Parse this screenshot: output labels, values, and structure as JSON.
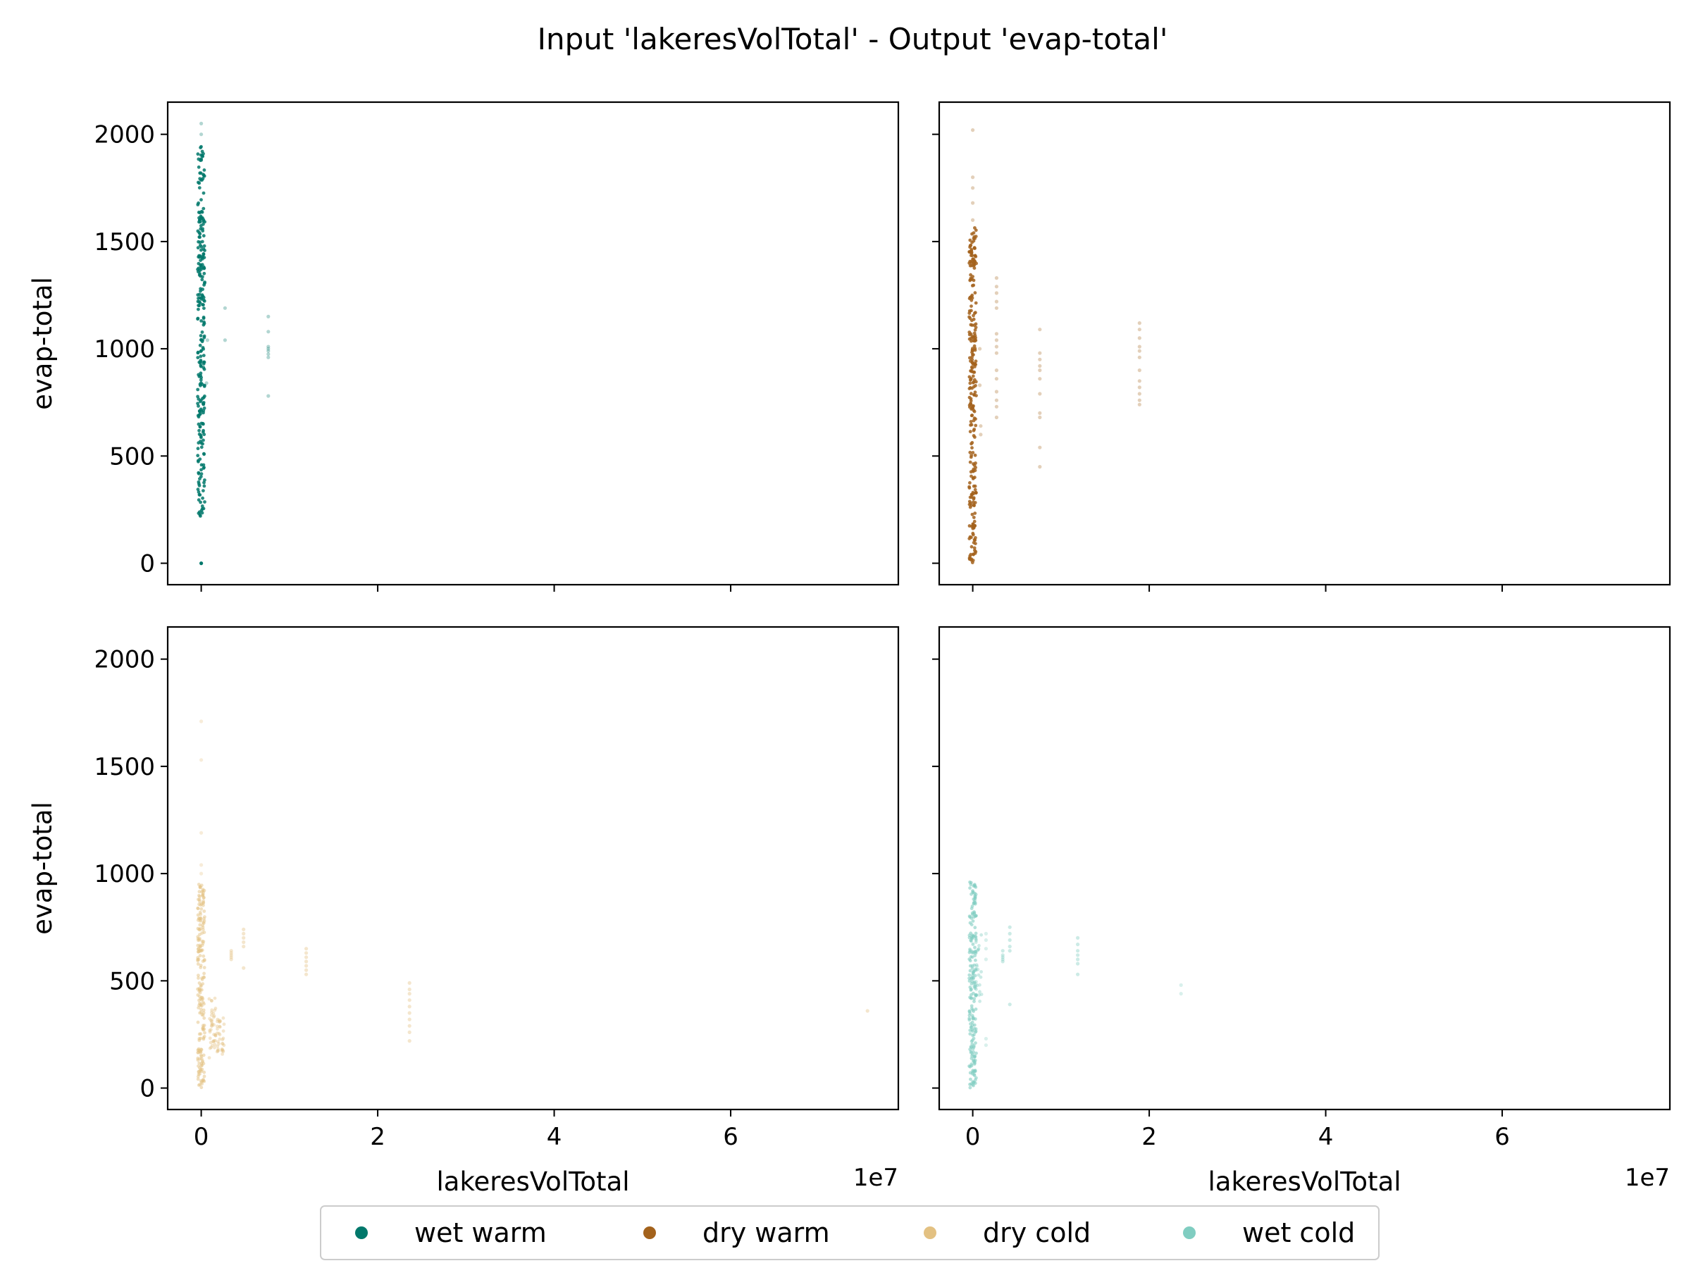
{
  "figure": {
    "title": "Input 'lakeresVolTotal' - Output 'evap-total'"
  },
  "legend": {
    "placement": "bottom-center",
    "entries": [
      {
        "label": "wet warm",
        "color": "#01786b"
      },
      {
        "label": "dry warm",
        "color": "#a3621c"
      },
      {
        "label": "dry cold",
        "color": "#e3c182"
      },
      {
        "label": "wet cold",
        "color": "#80cdc1"
      }
    ]
  },
  "chart_data": [
    {
      "type": "scatter",
      "series": [
        {
          "name": "wet warm",
          "color": "#01786b"
        }
      ],
      "xlim": [
        -3800000,
        79000000
      ],
      "ylim": [
        -100,
        2150
      ],
      "xticks": [
        0,
        20000000,
        40000000,
        60000000
      ],
      "xtick_labels": [],
      "yticks": [
        0,
        500,
        1000,
        1500,
        2000
      ],
      "ytick_labels": [
        "0",
        "500",
        "1000",
        "1500",
        "2000"
      ],
      "xlabel": "",
      "ylabel": "evap-total",
      "offset_text": "",
      "grid": false,
      "bands": [
        {
          "x": 0,
          "y": [
            210,
            1950
          ],
          "n": 260,
          "opacity": 0.85
        }
      ],
      "points": [
        [
          0,
          0,
          1
        ],
        [
          0,
          2050,
          0.3
        ],
        [
          0,
          2000,
          0.3
        ],
        [
          600000,
          840,
          0.3
        ],
        [
          700000,
          1040,
          0.3
        ],
        [
          2700000,
          1190,
          0.3
        ],
        [
          2700000,
          1040,
          0.3
        ],
        [
          7600000,
          1150,
          0.3
        ],
        [
          7600000,
          1080,
          0.3
        ],
        [
          7600000,
          1010,
          0.3
        ],
        [
          7600000,
          1000,
          0.3
        ],
        [
          7600000,
          990,
          0.3
        ],
        [
          7600000,
          975,
          0.3
        ],
        [
          7600000,
          960,
          0.3
        ],
        [
          7600000,
          780,
          0.3
        ]
      ]
    },
    {
      "type": "scatter",
      "series": [
        {
          "name": "dry warm",
          "color": "#a3621c"
        }
      ],
      "xlim": [
        -3800000,
        79000000
      ],
      "ylim": [
        -100,
        2150
      ],
      "xticks": [
        0,
        20000000,
        40000000,
        60000000
      ],
      "xtick_labels": [],
      "yticks": [
        0,
        500,
        1000,
        1500,
        2000
      ],
      "ytick_labels": [],
      "xlabel": "",
      "ylabel": "",
      "offset_text": "",
      "grid": false,
      "bands": [
        {
          "x": 0,
          "y": [
            0,
            1570
          ],
          "n": 260,
          "opacity": 0.85
        }
      ],
      "points": [
        [
          0,
          2020,
          0.3
        ],
        [
          0,
          1800,
          0.3
        ],
        [
          0,
          1750,
          0.3
        ],
        [
          0,
          1680,
          0.3
        ],
        [
          0,
          1600,
          0.3
        ],
        [
          800000,
          1000,
          0.3
        ],
        [
          800000,
          830,
          0.3
        ],
        [
          900000,
          640,
          0.3
        ],
        [
          900000,
          600,
          0.3
        ],
        [
          2700000,
          1330,
          0.3
        ],
        [
          2700000,
          1290,
          0.3
        ],
        [
          2700000,
          1260,
          0.3
        ],
        [
          2700000,
          1220,
          0.3
        ],
        [
          2700000,
          1190,
          0.3
        ],
        [
          2700000,
          1070,
          0.3
        ],
        [
          2700000,
          1040,
          0.3
        ],
        [
          2700000,
          1010,
          0.3
        ],
        [
          2700000,
          980,
          0.3
        ],
        [
          2700000,
          900,
          0.3
        ],
        [
          2700000,
          860,
          0.3
        ],
        [
          2700000,
          800,
          0.3
        ],
        [
          2700000,
          760,
          0.3
        ],
        [
          2700000,
          730,
          0.3
        ],
        [
          2700000,
          680,
          0.3
        ],
        [
          7600000,
          1090,
          0.3
        ],
        [
          7600000,
          980,
          0.3
        ],
        [
          7600000,
          950,
          0.3
        ],
        [
          7600000,
          920,
          0.3
        ],
        [
          7600000,
          900,
          0.3
        ],
        [
          7600000,
          860,
          0.3
        ],
        [
          7600000,
          790,
          0.3
        ],
        [
          7600000,
          700,
          0.3
        ],
        [
          7600000,
          680,
          0.3
        ],
        [
          7600000,
          540,
          0.3
        ],
        [
          7600000,
          450,
          0.3
        ],
        [
          18900000,
          1120,
          0.3
        ],
        [
          18900000,
          1090,
          0.3
        ],
        [
          18900000,
          1050,
          0.3
        ],
        [
          18900000,
          1010,
          0.3
        ],
        [
          18900000,
          990,
          0.3
        ],
        [
          18900000,
          960,
          0.3
        ],
        [
          18900000,
          900,
          0.3
        ],
        [
          18900000,
          850,
          0.3
        ],
        [
          18900000,
          820,
          0.3
        ],
        [
          18900000,
          790,
          0.3
        ],
        [
          18900000,
          760,
          0.3
        ],
        [
          18900000,
          740,
          0.3
        ]
      ]
    },
    {
      "type": "scatter",
      "series": [
        {
          "name": "dry cold",
          "color": "#e3c182"
        }
      ],
      "xlim": [
        -3800000,
        79000000
      ],
      "ylim": [
        -100,
        2150
      ],
      "xticks": [
        0,
        20000000,
        40000000,
        60000000
      ],
      "xtick_labels": [
        "0",
        "2",
        "4",
        "6"
      ],
      "yticks": [
        0,
        500,
        1000,
        1500,
        2000
      ],
      "ytick_labels": [
        "0",
        "500",
        "1000",
        "1500",
        "2000"
      ],
      "xlabel": "lakeresVolTotal",
      "ylabel": "evap-total",
      "offset_text": "1e7",
      "grid": false,
      "bands": [
        {
          "x": 0,
          "y": [
            0,
            950
          ],
          "n": 200,
          "opacity": 0.5
        },
        {
          "x": 1300000,
          "y": [
            140,
            420
          ],
          "n": 40,
          "opacity": 0.4
        },
        {
          "x": 2200000,
          "y": [
            150,
            330
          ],
          "n": 35,
          "opacity": 0.4
        }
      ],
      "points": [
        [
          0,
          1710,
          0.3
        ],
        [
          0,
          1530,
          0.3
        ],
        [
          0,
          1190,
          0.3
        ],
        [
          0,
          1040,
          0.3
        ],
        [
          0,
          1000,
          0.3
        ],
        [
          3400000,
          640,
          0.4
        ],
        [
          3400000,
          630,
          0.4
        ],
        [
          3400000,
          620,
          0.4
        ],
        [
          3400000,
          610,
          0.4
        ],
        [
          3400000,
          600,
          0.4
        ],
        [
          4800000,
          740,
          0.4
        ],
        [
          4800000,
          720,
          0.4
        ],
        [
          4800000,
          700,
          0.4
        ],
        [
          4800000,
          680,
          0.4
        ],
        [
          4800000,
          660,
          0.4
        ],
        [
          4800000,
          560,
          0.4
        ],
        [
          11900000,
          650,
          0.4
        ],
        [
          11900000,
          630,
          0.4
        ],
        [
          11900000,
          610,
          0.4
        ],
        [
          11900000,
          590,
          0.4
        ],
        [
          11900000,
          570,
          0.4
        ],
        [
          11900000,
          550,
          0.4
        ],
        [
          11900000,
          530,
          0.4
        ],
        [
          23600000,
          490,
          0.4
        ],
        [
          23600000,
          460,
          0.4
        ],
        [
          23600000,
          440,
          0.4
        ],
        [
          23600000,
          410,
          0.4
        ],
        [
          23600000,
          380,
          0.4
        ],
        [
          23600000,
          350,
          0.4
        ],
        [
          23600000,
          320,
          0.4
        ],
        [
          23600000,
          290,
          0.4
        ],
        [
          23600000,
          260,
          0.4
        ],
        [
          23600000,
          220,
          0.4
        ],
        [
          75500000,
          360,
          0.4
        ]
      ]
    },
    {
      "type": "scatter",
      "series": [
        {
          "name": "wet cold",
          "color": "#80cdc1"
        }
      ],
      "xlim": [
        -3800000,
        79000000
      ],
      "ylim": [
        -100,
        2150
      ],
      "xticks": [
        0,
        20000000,
        40000000,
        60000000
      ],
      "xtick_labels": [
        "0",
        "2",
        "4",
        "6"
      ],
      "yticks": [
        0,
        500,
        1000,
        1500,
        2000
      ],
      "ytick_labels": [],
      "xlabel": "lakeresVolTotal",
      "ylabel": "",
      "offset_text": "1e7",
      "grid": false,
      "bands": [
        {
          "x": 0,
          "y": [
            0,
            970
          ],
          "n": 200,
          "opacity": 0.6
        },
        {
          "x": 700000,
          "y": [
            400,
            720
          ],
          "n": 25,
          "opacity": 0.4
        }
      ],
      "points": [
        [
          1500000,
          230,
          0.3
        ],
        [
          1500000,
          200,
          0.3
        ],
        [
          1500000,
          720,
          0.3
        ],
        [
          1500000,
          690,
          0.3
        ],
        [
          1500000,
          650,
          0.3
        ],
        [
          1500000,
          600,
          0.3
        ],
        [
          3400000,
          640,
          0.4
        ],
        [
          3400000,
          620,
          0.4
        ],
        [
          3400000,
          610,
          0.4
        ],
        [
          3400000,
          600,
          0.4
        ],
        [
          3400000,
          590,
          0.4
        ],
        [
          4200000,
          750,
          0.4
        ],
        [
          4200000,
          720,
          0.4
        ],
        [
          4200000,
          690,
          0.4
        ],
        [
          4200000,
          660,
          0.4
        ],
        [
          4200000,
          640,
          0.4
        ],
        [
          4200000,
          390,
          0.4
        ],
        [
          11900000,
          700,
          0.4
        ],
        [
          11900000,
          670,
          0.4
        ],
        [
          11900000,
          640,
          0.4
        ],
        [
          11900000,
          620,
          0.4
        ],
        [
          11900000,
          600,
          0.4
        ],
        [
          11900000,
          580,
          0.4
        ],
        [
          11900000,
          530,
          0.4
        ],
        [
          23600000,
          480,
          0.3
        ],
        [
          23600000,
          440,
          0.3
        ]
      ]
    }
  ]
}
